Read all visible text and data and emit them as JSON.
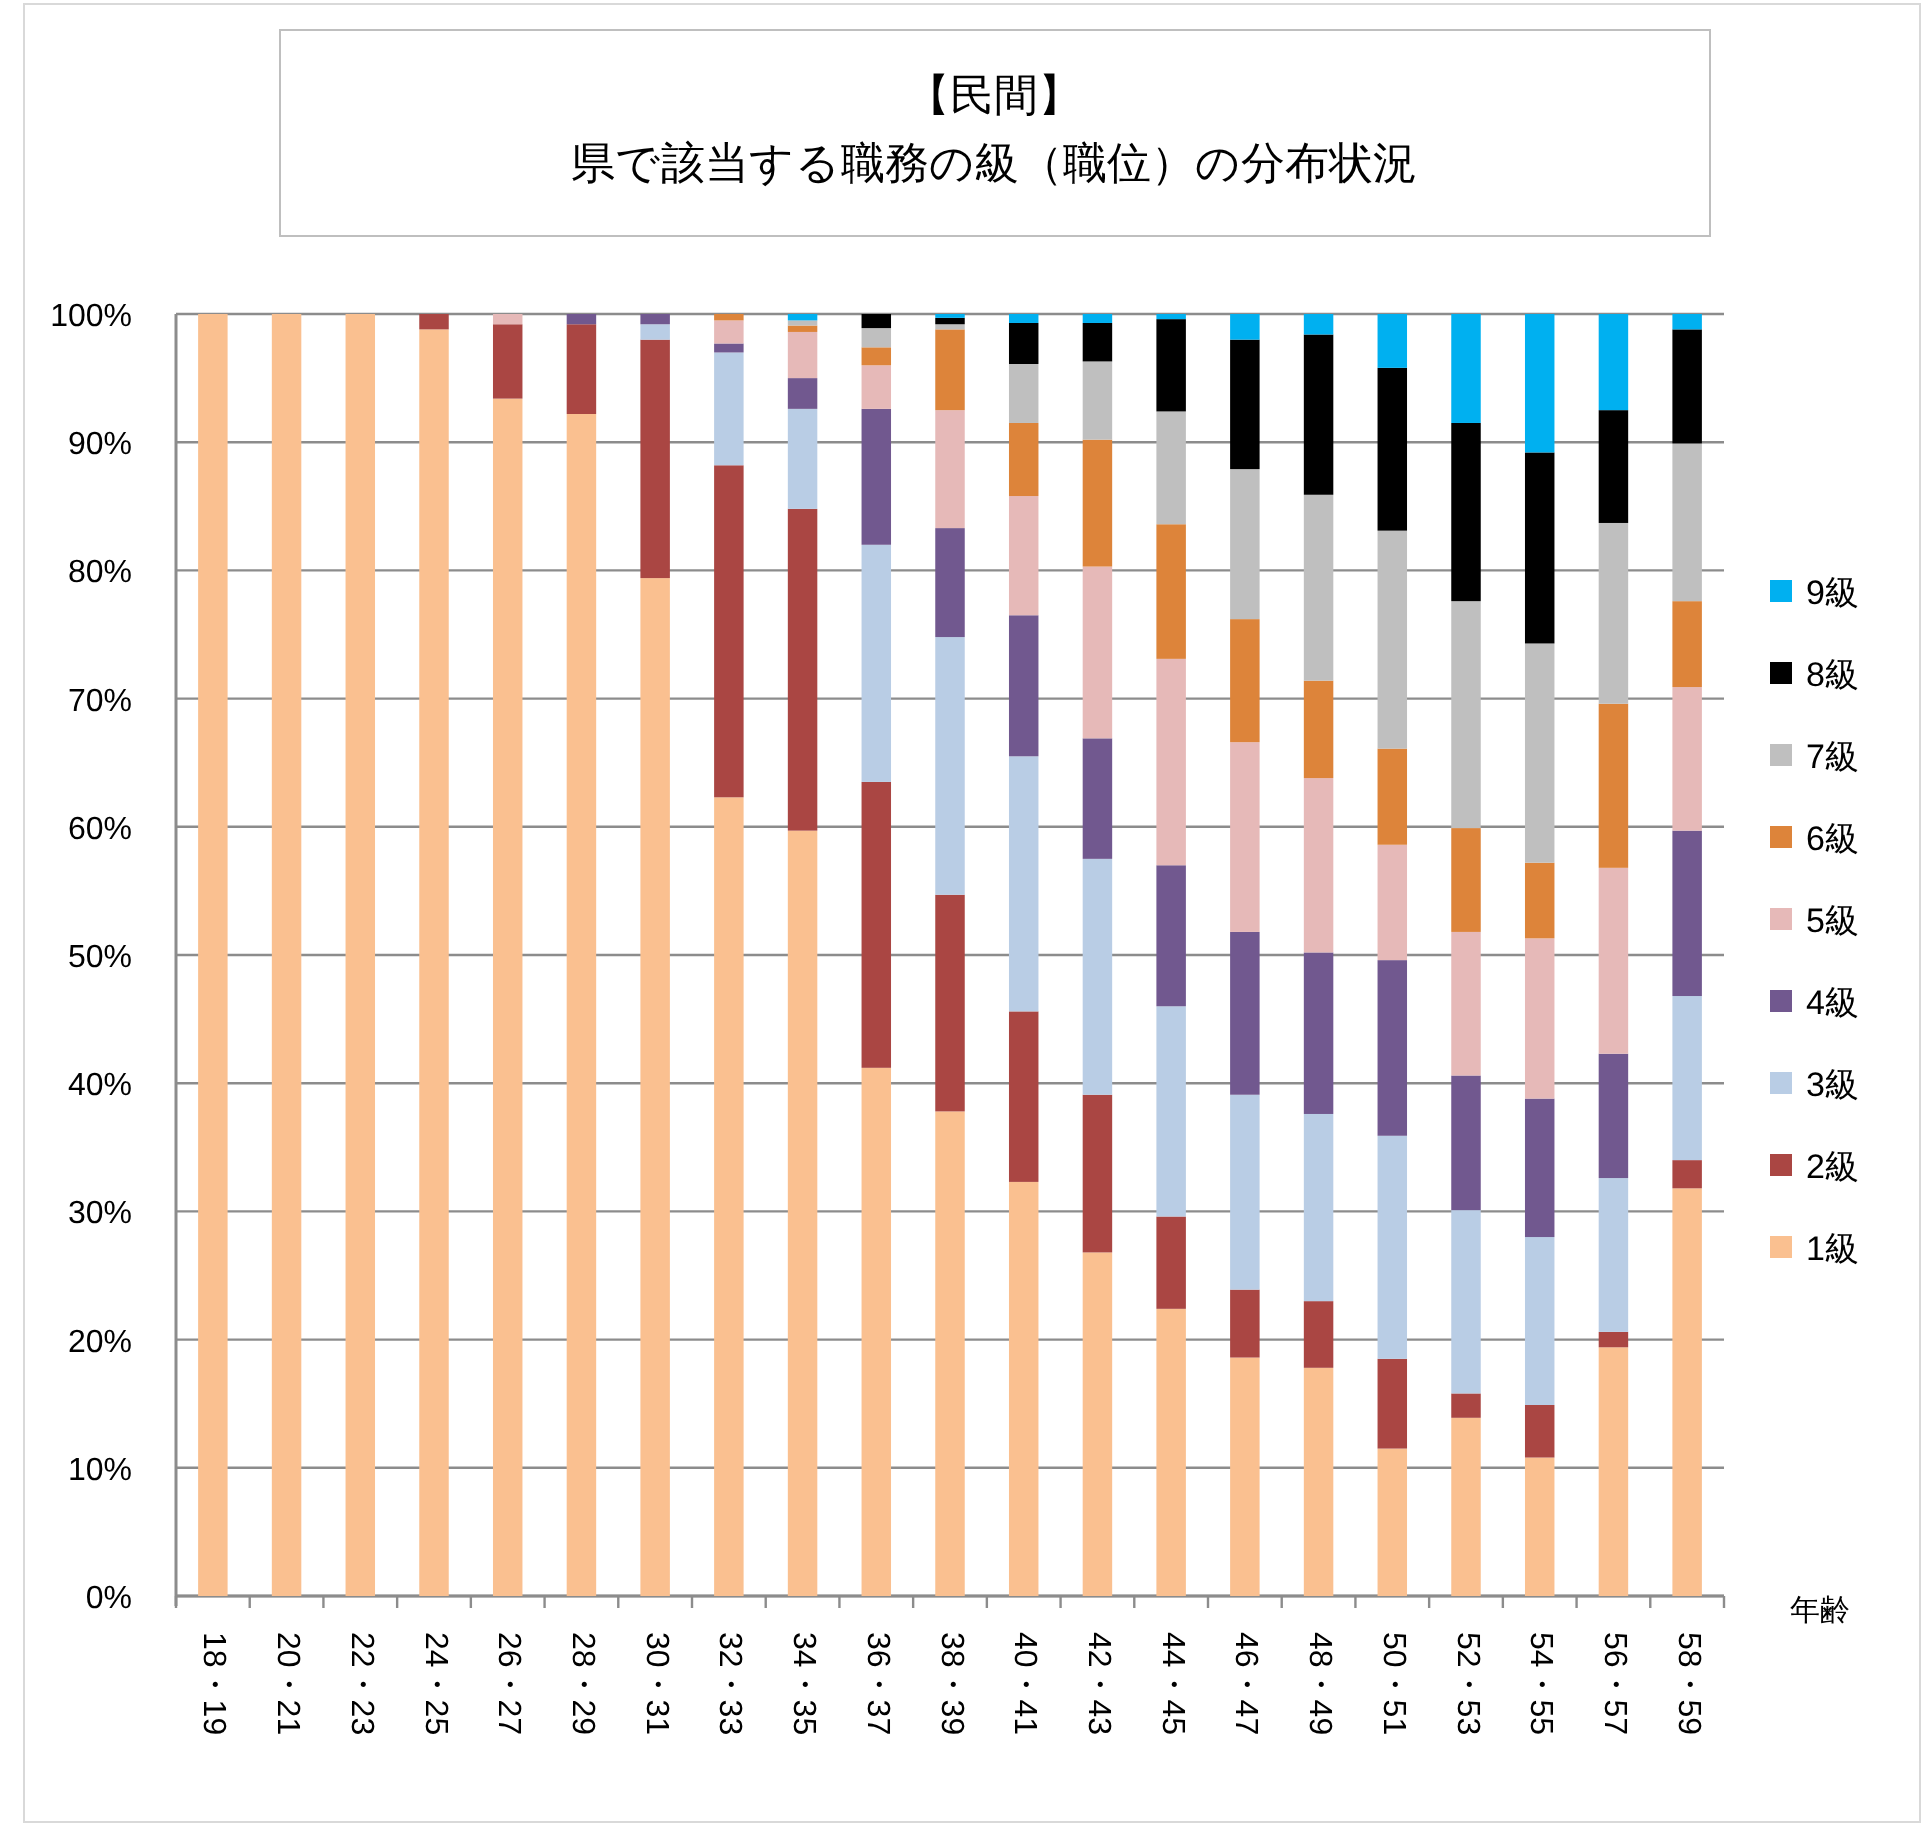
{
  "chart_data": {
    "type": "bar",
    "stacked": true,
    "title": "【民間】",
    "subtitle": "県で該当する職務の級（職位）の分布状況",
    "xlabel": "年齢",
    "categories": [
      "18・19",
      "20・21",
      "22・23",
      "24・25",
      "26・27",
      "28・29",
      "30・31",
      "32・33",
      "34・35",
      "36・37",
      "38・39",
      "40・41",
      "42・43",
      "44・45",
      "46・47",
      "48・49",
      "50・51",
      "52・53",
      "54・55",
      "56・57",
      "58・59"
    ],
    "series": [
      {
        "name": "1級",
        "color": "#fac090",
        "values": [
          100,
          100,
          100,
          98.8,
          93.4,
          92.2,
          79.4,
          62.3,
          59.7,
          41.2,
          37.8,
          32.3,
          26.8,
          22.4,
          18.6,
          17.8,
          11.5,
          13.9,
          10.8,
          19.4,
          31.8
        ]
      },
      {
        "name": "2級",
        "color": "#aa4643",
        "values": [
          0,
          0,
          0,
          1.2,
          5.8,
          7.0,
          18.6,
          25.9,
          25.1,
          22.3,
          16.9,
          13.3,
          12.3,
          7.2,
          5.3,
          5.2,
          7.0,
          1.9,
          4.1,
          1.2,
          2.2
        ]
      },
      {
        "name": "3級",
        "color": "#b9cde5",
        "values": [
          0,
          0,
          0,
          0,
          0,
          0,
          1.2,
          8.8,
          7.8,
          18.5,
          20.1,
          19.9,
          18.4,
          16.4,
          15.2,
          14.6,
          17.4,
          14.3,
          13.1,
          12.0,
          12.8
        ]
      },
      {
        "name": "4級",
        "color": "#71588f",
        "values": [
          0,
          0,
          0,
          0,
          0,
          0.8,
          0.8,
          0.7,
          2.4,
          10.6,
          8.5,
          11.0,
          9.4,
          11.0,
          12.7,
          12.6,
          13.7,
          10.5,
          10.8,
          9.7,
          12.9
        ]
      },
      {
        "name": "5級",
        "color": "#e6b9b8",
        "values": [
          0,
          0,
          0,
          0,
          0.8,
          0,
          0,
          1.8,
          3.6,
          3.4,
          9.2,
          9.3,
          13.4,
          16.1,
          14.8,
          13.6,
          9.0,
          11.2,
          12.5,
          14.5,
          11.2
        ]
      },
      {
        "name": "6級",
        "color": "#dd843a",
        "values": [
          0,
          0,
          0,
          0,
          0,
          0,
          0,
          0.5,
          0.5,
          1.4,
          6.3,
          5.7,
          9.9,
          10.5,
          9.6,
          7.6,
          7.5,
          8.1,
          5.9,
          12.8,
          6.7
        ]
      },
      {
        "name": "7級",
        "color": "#bfbfbf",
        "values": [
          0,
          0,
          0,
          0,
          0,
          0,
          0,
          0,
          0.4,
          1.5,
          0.4,
          4.6,
          6.1,
          8.8,
          11.7,
          14.5,
          17.0,
          17.7,
          17.1,
          14.1,
          12.3
        ]
      },
      {
        "name": "8級",
        "color": "#000000",
        "values": [
          0,
          0,
          0,
          0,
          0,
          0,
          0,
          0,
          0,
          1.1,
          0.5,
          3.2,
          3.0,
          7.2,
          10.1,
          12.5,
          12.7,
          13.9,
          14.9,
          8.8,
          8.9
        ]
      },
      {
        "name": "9級",
        "color": "#00b0f0",
        "values": [
          0,
          0,
          0,
          0,
          0,
          0,
          0,
          0,
          0.5,
          0,
          0.3,
          0.7,
          0.7,
          0.4,
          2.0,
          1.6,
          4.2,
          8.5,
          10.8,
          7.5,
          1.2
        ]
      }
    ],
    "ylim": [
      0,
      100
    ],
    "yticks": [
      {
        "value": 0,
        "label": "0%"
      },
      {
        "value": 10,
        "label": "10%"
      },
      {
        "value": 20,
        "label": "20%"
      },
      {
        "value": 30,
        "label": "30%"
      },
      {
        "value": 40,
        "label": "40%"
      },
      {
        "value": 50,
        "label": "50%"
      },
      {
        "value": 60,
        "label": "60%"
      },
      {
        "value": 70,
        "label": "70%"
      },
      {
        "value": 80,
        "label": "80%"
      },
      {
        "value": 90,
        "label": "90%"
      },
      {
        "value": 100,
        "label": "100%"
      }
    ],
    "grid": "y",
    "legend": "right"
  }
}
